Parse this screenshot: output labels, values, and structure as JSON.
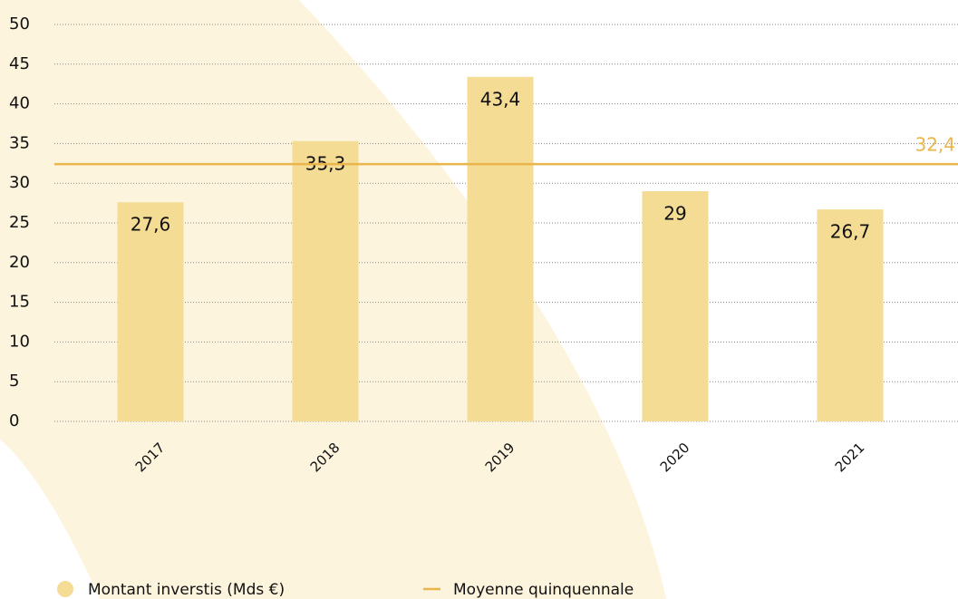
{
  "chart_data": {
    "type": "bar",
    "categories": [
      "2017",
      "2018",
      "2019",
      "2020",
      "2021"
    ],
    "series": [
      {
        "name": "Montant inverstis (Mds €)",
        "color": "#f5dc95",
        "values": [
          27.6,
          35.3,
          43.4,
          29,
          26.7
        ],
        "value_labels": [
          "27,6",
          "35,3",
          "43,4",
          "29",
          "26,7"
        ]
      }
    ],
    "reference_line": {
      "name": "Moyenne quinquennale",
      "value": 32.4,
      "label": "32,4",
      "color": "#eab54a"
    },
    "ylim": [
      0,
      50
    ],
    "yticks": [
      0,
      5,
      10,
      15,
      20,
      25,
      30,
      35,
      40,
      45,
      50
    ],
    "grid": true
  }
}
